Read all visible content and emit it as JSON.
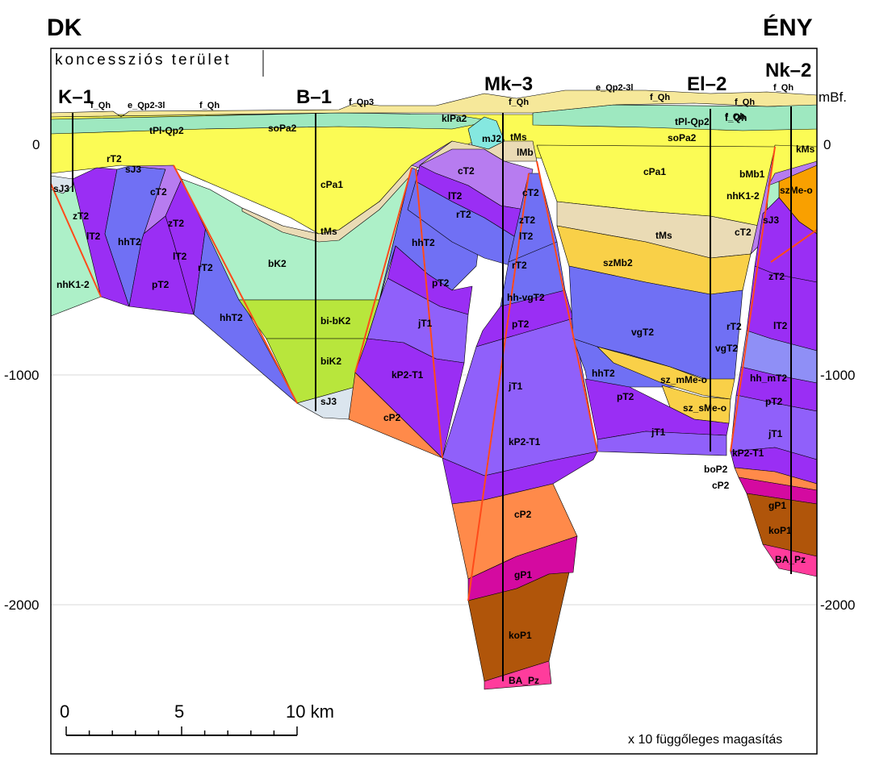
{
  "directions": {
    "left": "DK",
    "right": "ÉNY"
  },
  "area_label": "koncessziós terület",
  "wells": [
    "K–1",
    "B–1",
    "Mk–3",
    "El–2",
    "Nk–2"
  ],
  "axis": {
    "unit": "mBf.",
    "left_ticks": [
      "0",
      "-1000",
      "-2000"
    ],
    "right_ticks": [
      "0",
      "-1000",
      "-2000"
    ]
  },
  "scale_bar": {
    "labels": [
      "0",
      "5",
      "10 km"
    ]
  },
  "note": "x 10 függőleges magasítás",
  "units": {
    "surface": [
      "f_Qh",
      "e_Qp2-3l",
      "f_Qh",
      "f_Qp3",
      "f_Qh",
      "e_Qp2-3l",
      "f_Qh",
      "f_Qh",
      "f_Qh",
      "f_Qh"
    ],
    "block_k1": [
      "tPl-Qp2",
      "rT2",
      "sJ3",
      "sJ3",
      "zT2",
      "lT2",
      "hhT2",
      "cT2",
      "zT2",
      "lT2",
      "rT2",
      "pT2",
      "nhK1-2",
      "hhT2"
    ],
    "block_b1": [
      "soPa2",
      "cPa1",
      "tMs",
      "bK2",
      "bi-bK2",
      "biK2",
      "sJ3"
    ],
    "block_mk3": [
      "klPa2",
      "mJ2",
      "tMs",
      "lMb",
      "cT2",
      "lT2",
      "rT2",
      "cT2",
      "zT2",
      "lT2",
      "hhT2",
      "pT2",
      "jT1",
      "kP2-T1",
      "cP2",
      "rT2",
      "hh-vgT2",
      "pT2",
      "jT1",
      "kP2-T1",
      "cP2",
      "gP1",
      "koP1",
      "BA_Pz"
    ],
    "block_el2": [
      "tPl-Qp2",
      "f_Qh",
      "soPa2",
      "cPa1",
      "tMs",
      "szMb2",
      "vgT2",
      "rT2",
      "vgT2",
      "hhT2",
      "sz_mMe-o",
      "pT2",
      "sz_sMe-o",
      "jT1"
    ],
    "block_nk2": [
      "kMs",
      "bMb1",
      "szMe-o",
      "nhK1-2",
      "sJ3",
      "cT2",
      "zT2",
      "lT2",
      "hh_mT2",
      "pT2",
      "jT1",
      "kP2-T1",
      "boP2",
      "cP2",
      "gP1",
      "koP1",
      "BA_Pz"
    ]
  },
  "colors": {
    "quaternary": "#f6e89a",
    "green_pl": "#9ee8c0",
    "yellow_pa": "#fbfb55",
    "tan_ms": "#eadbb5",
    "mint_k": "#adf0c8",
    "lime_k": "#b8e63c",
    "pale_j": "#dbe5ee",
    "cyan_mj": "#85e8e0",
    "purple_ct": "#b77cf0",
    "violet_z": "#9a2ef4",
    "blue_hh": "#7070f4",
    "purple_j": "#9060fa",
    "orange_c": "#ff8a4a",
    "magenta_g": "#d40aa0",
    "brown_ko": "#b0550a",
    "pink_ba": "#ff3c9c",
    "gold_sz": "#f9d048",
    "fault": "#ff4a1a"
  }
}
